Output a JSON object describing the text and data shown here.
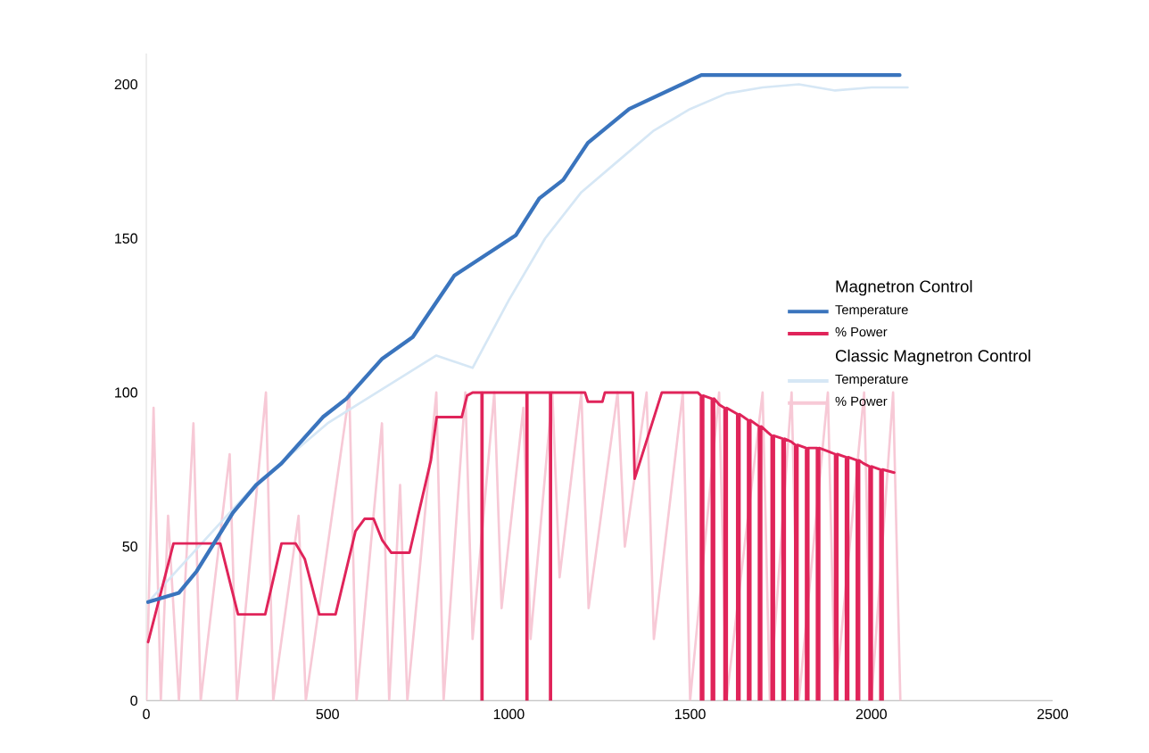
{
  "chart_data": {
    "type": "line",
    "legend_title": "Magnetron Control",
    "annotations": [
      "Classic Magnetron Control"
    ],
    "legend": "right",
    "marker": "none",
    "line_style": "solid",
    "grid": false,
    "xlim": [
      0,
      2500
    ],
    "ylim": [
      0,
      210
    ],
    "xticks": [
      0,
      500,
      1000,
      1500,
      2000,
      2500
    ],
    "yticks": [
      0,
      50,
      100,
      150,
      200
    ],
    "series": [
      {
        "name": "Temperature",
        "color": "#3a74bd",
        "x": [
          5,
          90,
          139,
          239,
          303,
          373,
          487,
          552,
          651,
          735,
          850,
          1019,
          1084,
          1150,
          1218,
          1332,
          1531,
          1700,
          1900,
          2078
        ],
        "values": [
          32,
          35,
          42,
          61,
          70,
          77,
          92,
          98,
          111,
          118,
          138,
          151,
          163,
          169,
          181,
          192,
          203,
          203,
          203,
          203
        ]
      },
      {
        "name": "% Power",
        "color": "#e0245a",
        "x": [
          5,
          75,
          204,
          253,
          328,
          373,
          412,
          437,
          477,
          522,
          577,
          602,
          627,
          651,
          676,
          726,
          785,
          801,
          870,
          885,
          900,
          925,
          925,
          927,
          927,
          1049,
          1049,
          1051,
          1051,
          1114,
          1114,
          1116,
          1116,
          1210,
          1218,
          1258,
          1265,
          1342,
          1347,
          1422,
          1521,
          1530,
          1530,
          1536,
          1536,
          1560,
          1560,
          1566,
          1566,
          1581,
          1595,
          1595,
          1601,
          1601,
          1630,
          1630,
          1636,
          1636,
          1660,
          1660,
          1666,
          1666,
          1690,
          1690,
          1696,
          1696,
          1715,
          1725,
          1725,
          1731,
          1731,
          1755,
          1755,
          1761,
          1761,
          1779,
          1790,
          1790,
          1796,
          1796,
          1820,
          1820,
          1826,
          1826,
          1850,
          1850,
          1856,
          1856,
          1879,
          1900,
          1900,
          1906,
          1906,
          1930,
          1930,
          1936,
          1936,
          1960,
          1960,
          1966,
          1966,
          1978,
          1995,
          1995,
          2001,
          2001,
          2025,
          2025,
          2031,
          2031,
          2063
        ],
        "values": [
          19,
          51,
          51,
          28,
          28,
          51,
          51,
          46,
          28,
          28,
          55,
          59,
          59,
          52,
          48,
          48,
          78,
          92,
          92,
          99,
          100,
          100,
          0,
          0,
          100,
          100,
          0,
          0,
          100,
          100,
          0,
          0,
          100,
          100,
          97,
          97,
          100,
          100,
          72,
          100,
          100,
          99,
          0,
          0,
          99,
          98,
          0,
          0,
          98,
          96,
          95,
          0,
          0,
          95,
          93,
          0,
          0,
          93,
          91,
          0,
          0,
          91,
          89,
          0,
          0,
          89,
          87,
          86,
          0,
          0,
          86,
          85,
          0,
          0,
          85,
          84,
          83,
          0,
          0,
          83,
          82,
          0,
          0,
          82,
          82,
          0,
          0,
          82,
          81,
          80,
          0,
          0,
          80,
          79,
          0,
          0,
          79,
          78,
          0,
          0,
          78,
          77,
          76,
          0,
          0,
          76,
          75,
          0,
          0,
          75,
          74
        ]
      },
      {
        "name": "Temperature",
        "color": "#d6e7f5",
        "x": [
          5,
          300,
          500,
          800,
          900,
          1000,
          1100,
          1200,
          1300,
          1400,
          1500,
          1600,
          1700,
          1800,
          1900,
          2000,
          2100
        ],
        "values": [
          32,
          70,
          90,
          112,
          108,
          130,
          150,
          165,
          175,
          185,
          192,
          197,
          199,
          200,
          198,
          199,
          199
        ]
      },
      {
        "name": "% Power",
        "color": "#f7c9d6",
        "x": [
          0,
          20,
          40,
          60,
          90,
          130,
          150,
          230,
          250,
          330,
          350,
          420,
          440,
          560,
          580,
          650,
          670,
          700,
          720,
          800,
          820,
          880,
          900,
          960,
          980,
          1040,
          1060,
          1120,
          1140,
          1200,
          1220,
          1300,
          1320,
          1380,
          1400,
          1480,
          1500,
          1580,
          1600,
          1700,
          1720,
          1780,
          1800,
          1880,
          1900,
          1980,
          2000,
          2060,
          2080
        ],
        "values": [
          0,
          95,
          0,
          60,
          0,
          90,
          0,
          80,
          0,
          100,
          0,
          60,
          0,
          100,
          0,
          90,
          0,
          70,
          0,
          100,
          0,
          100,
          20,
          100,
          30,
          95,
          20,
          100,
          40,
          100,
          30,
          100,
          50,
          100,
          20,
          100,
          0,
          100,
          0,
          100,
          0,
          100,
          0,
          100,
          0,
          100,
          0,
          100,
          0
        ]
      }
    ]
  }
}
